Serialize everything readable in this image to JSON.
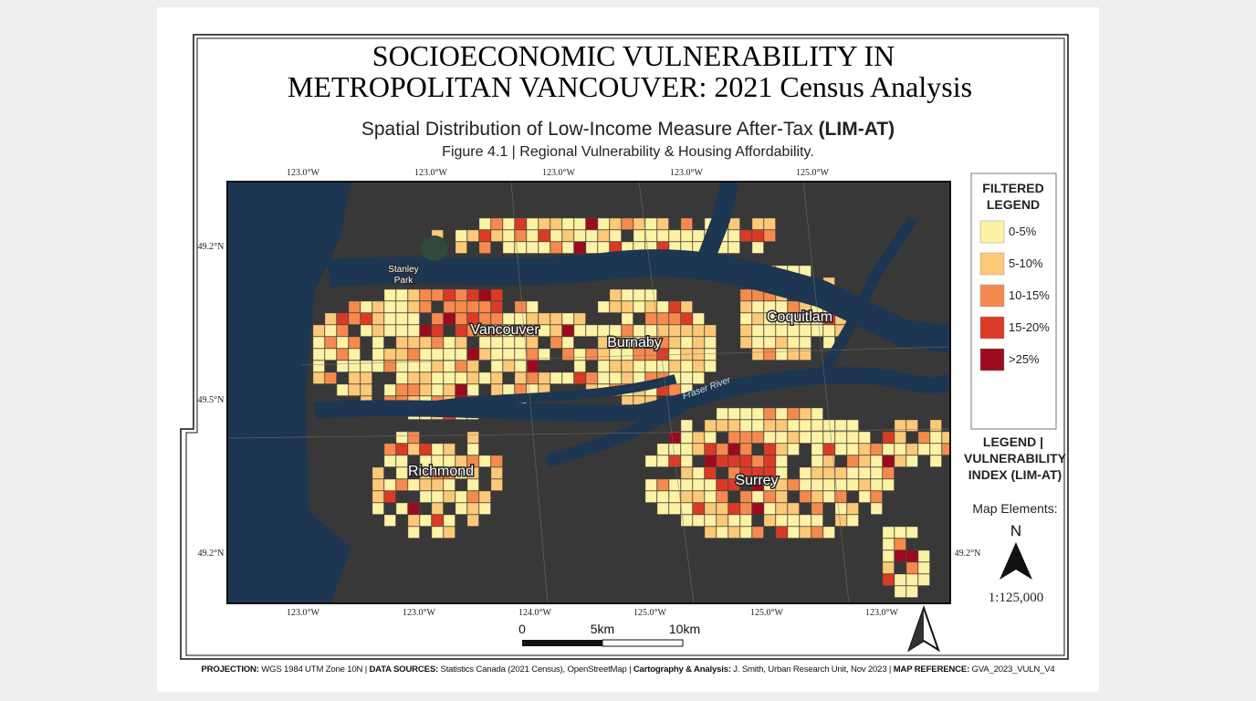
{
  "title_lines": [
    "SOCIOECONOMIC VULNERABILITY IN",
    "METROPOLITAN VANCOUVER: 2021 Census Analysis"
  ],
  "subtitle": {
    "text": "Spatial Distribution of Low-Income Measure After-Tax ",
    "bold": "(LIM-AT)"
  },
  "figure_caption": "Figure 4.1 | Regional Vulnerability & Housing Affordability.",
  "map": {
    "top_lon_labels": [
      "123.0°W",
      "123.0°W",
      "123.0°W",
      "123.0°W",
      "125.0°W"
    ],
    "bottom_lon_labels": [
      "123.0°W",
      "123.0°W",
      "124.0°W",
      "125.0°W",
      "125.0°W",
      "123.0°W"
    ],
    "left_lat_labels": [
      "49.2°N",
      "49.5°N",
      "49.2°N"
    ],
    "right_lat_labels": [
      "49.2°N"
    ],
    "park_label": [
      "Stanley",
      "Park"
    ],
    "place_labels": [
      "Vancouver",
      "Burnaby",
      "Coquitlam",
      "Richmond",
      "Surrey"
    ],
    "river_label": "Fraser River",
    "scale_bar": [
      "0",
      "5km",
      "10km"
    ]
  },
  "legend": {
    "title": [
      "FILTERED",
      "LEGEND"
    ],
    "items": [
      {
        "label": "0-5%",
        "color": "#fdf3a6"
      },
      {
        "label": "5-10%",
        "color": "#fcc978"
      },
      {
        "label": "10-15%",
        "color": "#f68a4e"
      },
      {
        "label": "15-20%",
        "color": "#db3a26"
      },
      {
        "label": ">25%",
        "color": "#9b0a1f"
      }
    ],
    "caption": [
      "LEGEND |",
      "VULNERABILITY",
      "INDEX (LIM-AT)"
    ],
    "map_elements": "Map Elements:",
    "north": "N",
    "scale_ratio": "1:125,000"
  },
  "footer": [
    {
      "label": "PROJECTION:",
      "text": " WGS 1984 UTM Zone 10N | "
    },
    {
      "label": "DATA SOURCES:",
      "text": " Statistics Canada (2021 Census), OpenStreetMap | "
    },
    {
      "label": "Cartography & Analysis:",
      "text": " J. Smith, Urban Research Unit, Nov 2023 | "
    },
    {
      "label": "MAP REFERENCE:",
      "text": " GVA_2023_VULN_V4"
    }
  ]
}
